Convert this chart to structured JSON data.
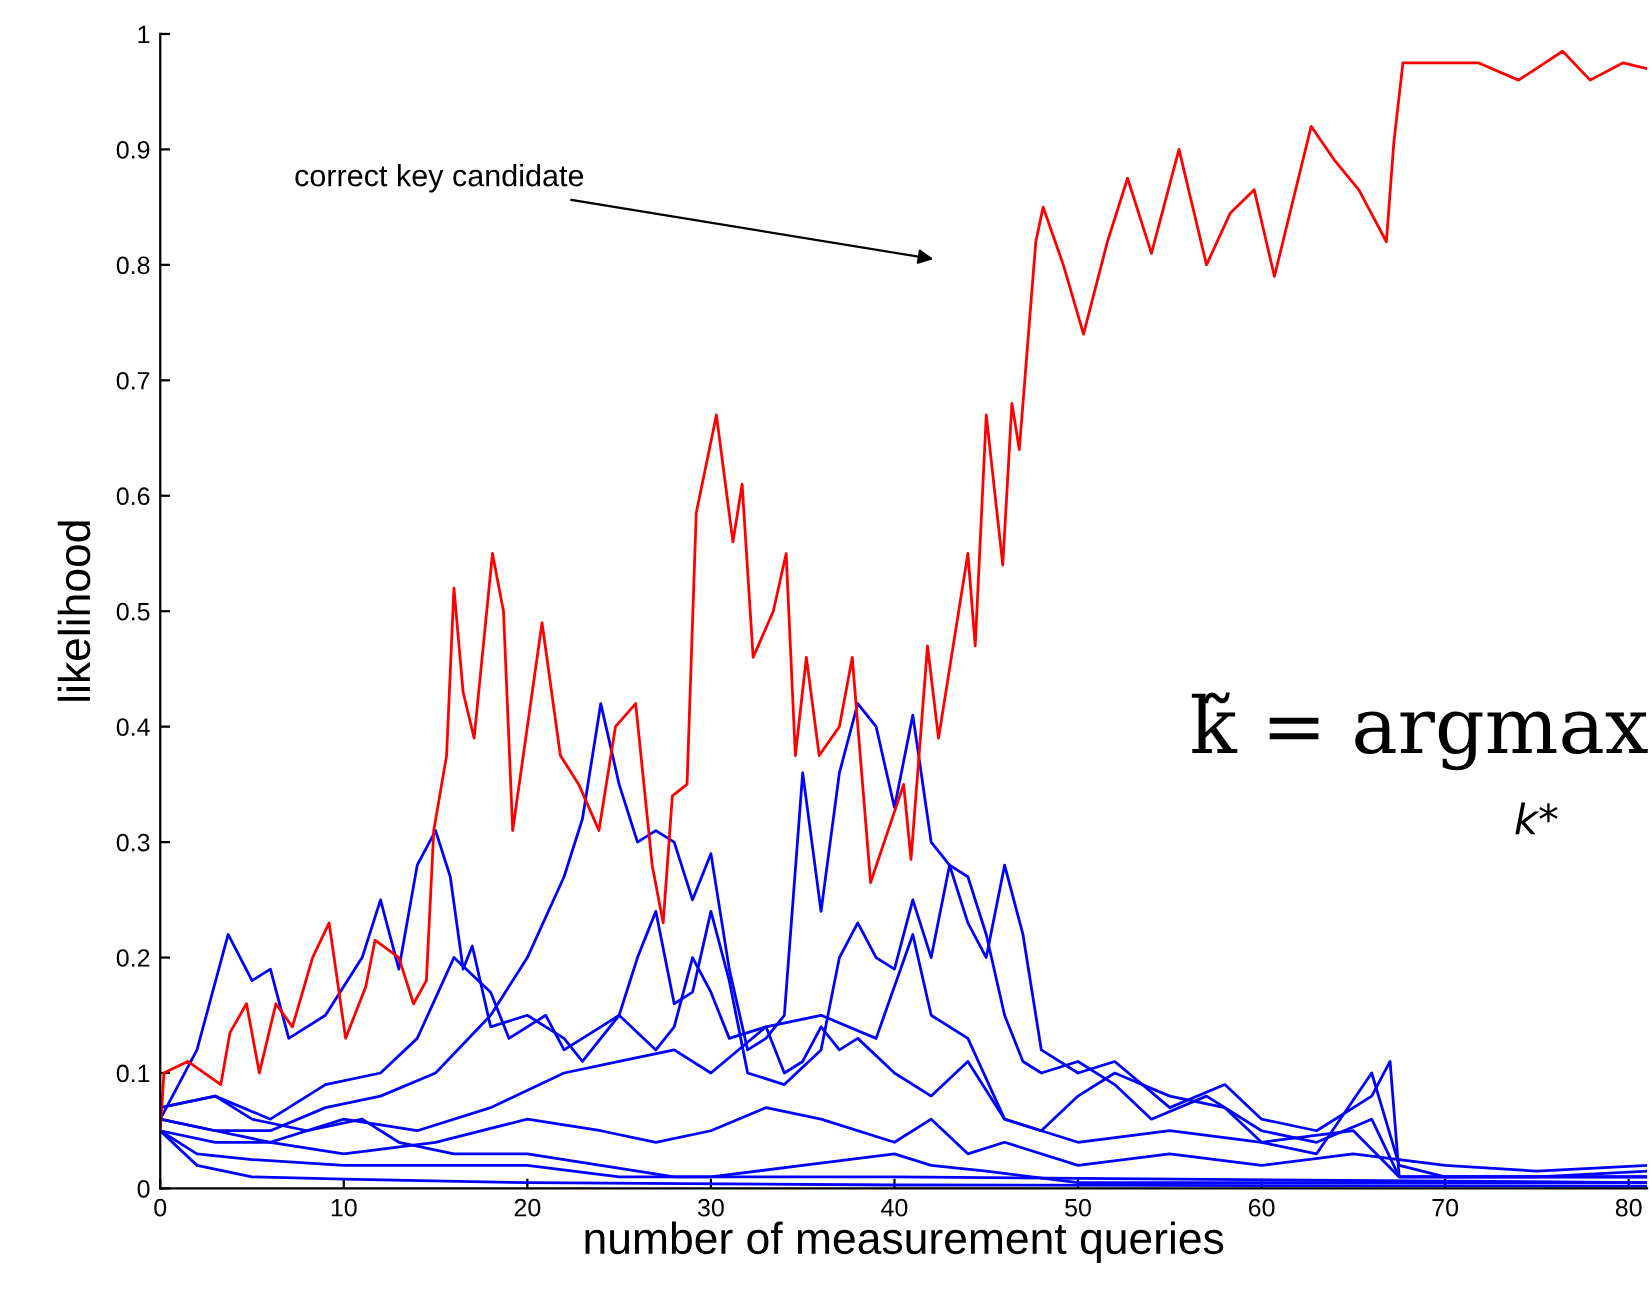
{
  "chart_data": {
    "type": "line",
    "xlabel": "number of measurement queries",
    "ylabel": "likelihood",
    "xlim": [
      0,
      81
    ],
    "ylim": [
      0,
      1
    ],
    "xticks": [
      0,
      10,
      20,
      30,
      40,
      50,
      60,
      70,
      80
    ],
    "yticks": [
      0,
      0.1,
      0.2,
      0.3,
      0.4,
      0.5,
      0.6,
      0.7,
      0.8,
      0.9,
      1
    ],
    "grid": false,
    "legend": false,
    "marker": "none",
    "line_style": "solid",
    "annotations": [
      "correct key candidate",
      "k̃ = argmax",
      "k*"
    ],
    "series": [
      {
        "color": "#0000ff",
        "x": [
          0,
          2,
          3.7,
          5,
          6,
          7,
          9,
          11,
          12,
          13,
          14,
          15,
          15.8,
          16.5,
          17,
          18,
          20,
          22,
          23,
          25,
          27,
          28,
          29,
          30,
          31,
          33,
          34,
          35,
          36,
          37,
          38,
          40,
          42,
          44,
          46,
          48,
          50,
          52,
          55,
          58,
          60,
          63,
          66,
          67.5,
          70,
          75,
          81
        ],
        "values": [
          0.06,
          0.12,
          0.22,
          0.18,
          0.19,
          0.13,
          0.15,
          0.2,
          0.25,
          0.19,
          0.28,
          0.31,
          0.27,
          0.19,
          0.21,
          0.14,
          0.15,
          0.13,
          0.11,
          0.15,
          0.12,
          0.14,
          0.2,
          0.17,
          0.13,
          0.14,
          0.1,
          0.11,
          0.14,
          0.12,
          0.13,
          0.1,
          0.08,
          0.11,
          0.06,
          0.05,
          0.08,
          0.1,
          0.08,
          0.07,
          0.04,
          0.03,
          0.1,
          0.02,
          0.01,
          0.01,
          0.015
        ]
      },
      {
        "color": "#0000ff",
        "x": [
          0,
          3,
          6,
          9,
          12,
          15,
          18,
          20,
          22,
          23,
          24,
          25,
          26,
          27,
          28,
          29,
          30,
          31,
          32,
          33,
          34,
          35,
          36,
          37,
          38,
          39,
          40,
          41,
          42,
          43,
          44,
          45,
          46,
          47,
          48,
          50,
          52,
          54,
          57,
          60,
          63,
          66,
          67.5,
          81
        ],
        "values": [
          0.06,
          0.05,
          0.05,
          0.07,
          0.08,
          0.1,
          0.15,
          0.2,
          0.27,
          0.32,
          0.42,
          0.35,
          0.3,
          0.31,
          0.3,
          0.25,
          0.29,
          0.19,
          0.12,
          0.13,
          0.15,
          0.36,
          0.24,
          0.36,
          0.42,
          0.4,
          0.33,
          0.41,
          0.3,
          0.28,
          0.27,
          0.22,
          0.15,
          0.11,
          0.1,
          0.11,
          0.09,
          0.06,
          0.08,
          0.05,
          0.04,
          0.06,
          0.01,
          0.01
        ]
      },
      {
        "color": "#0000ff",
        "x": [
          0,
          3,
          6,
          9,
          12,
          14,
          16,
          18,
          19,
          21,
          22,
          24,
          25,
          26,
          27,
          28,
          29,
          30,
          31,
          32,
          34,
          36,
          37,
          38,
          39,
          40,
          41,
          42,
          43,
          44,
          45,
          46,
          47,
          48,
          50,
          52,
          55,
          58,
          60,
          63,
          66,
          67,
          67.5,
          81
        ],
        "values": [
          0.07,
          0.08,
          0.06,
          0.09,
          0.1,
          0.13,
          0.2,
          0.17,
          0.13,
          0.15,
          0.12,
          0.14,
          0.15,
          0.2,
          0.24,
          0.16,
          0.17,
          0.24,
          0.18,
          0.1,
          0.09,
          0.12,
          0.2,
          0.23,
          0.2,
          0.19,
          0.25,
          0.2,
          0.28,
          0.23,
          0.2,
          0.28,
          0.22,
          0.12,
          0.1,
          0.11,
          0.07,
          0.09,
          0.06,
          0.05,
          0.08,
          0.11,
          0.01,
          0.01
        ]
      },
      {
        "color": "#0000ff",
        "x": [
          0,
          3,
          6,
          10,
          14,
          18,
          22,
          25,
          28,
          30,
          33,
          36,
          39,
          41,
          42,
          44,
          46,
          48,
          50,
          55,
          60,
          65,
          67.5,
          81
        ],
        "values": [
          0.06,
          0.05,
          0.04,
          0.06,
          0.05,
          0.07,
          0.1,
          0.11,
          0.12,
          0.1,
          0.14,
          0.15,
          0.13,
          0.22,
          0.15,
          0.13,
          0.06,
          0.05,
          0.04,
          0.05,
          0.04,
          0.05,
          0.01,
          0.01
        ]
      },
      {
        "color": "#0000ff",
        "x": [
          0,
          3,
          6,
          10,
          15,
          20,
          24,
          27,
          30,
          33,
          36,
          40,
          42,
          44,
          46,
          50,
          55,
          60,
          65,
          70,
          75,
          81
        ],
        "values": [
          0.05,
          0.04,
          0.04,
          0.03,
          0.04,
          0.06,
          0.05,
          0.04,
          0.05,
          0.07,
          0.06,
          0.04,
          0.06,
          0.03,
          0.04,
          0.02,
          0.03,
          0.02,
          0.03,
          0.02,
          0.015,
          0.02
        ]
      },
      {
        "color": "#0000ff",
        "x": [
          0,
          2,
          5,
          10,
          15,
          20,
          25,
          30,
          35,
          40,
          42,
          45,
          50,
          60,
          70,
          81
        ],
        "values": [
          0.05,
          0.03,
          0.025,
          0.02,
          0.02,
          0.02,
          0.01,
          0.01,
          0.02,
          0.03,
          0.02,
          0.015,
          0.005,
          0.005,
          0.005,
          0.005
        ]
      },
      {
        "color": "#0000ff",
        "x": [
          0,
          2,
          5,
          10,
          20,
          40,
          81
        ],
        "values": [
          0.05,
          0.02,
          0.01,
          0.008,
          0.005,
          0.003,
          0.002
        ]
      },
      {
        "color": "#0000ff",
        "x": [
          0,
          3,
          5,
          8,
          11,
          13,
          16,
          20,
          24,
          28,
          32,
          40,
          81
        ],
        "values": [
          0.07,
          0.08,
          0.06,
          0.05,
          0.06,
          0.04,
          0.03,
          0.03,
          0.02,
          0.01,
          0.01,
          0.01,
          0.005
        ]
      },
      {
        "color": "#ff0000",
        "x": [
          0,
          0.2,
          1.5,
          3.3,
          3.8,
          4.7,
          5.4,
          6.3,
          7.2,
          8.3,
          9.2,
          10.1,
          11.2,
          11.7,
          13.0,
          13.8,
          14.5,
          14.9,
          15.6,
          16.0,
          16.5,
          17.1,
          18.1,
          18.7,
          19.2,
          20.0,
          20.8,
          21.8,
          22.8,
          23.9,
          24.8,
          25.9,
          26.8,
          27.4,
          27.9,
          28.7,
          29.2,
          30.3,
          31.2,
          31.7,
          32.3,
          33.4,
          34.1,
          34.6,
          35.2,
          35.9,
          37.0,
          37.7,
          38.7,
          40.5,
          40.9,
          41.8,
          42.4,
          44.0,
          44.4,
          45.0,
          45.9,
          46.4,
          46.8,
          47.7,
          48.1,
          49.2,
          50.3,
          51.6,
          52.7,
          54.0,
          55.5,
          57.0,
          58.3,
          59.6,
          60.7,
          62.7,
          64.0,
          65.3,
          66.8,
          67.2,
          67.7,
          69.6,
          71.8,
          74.0,
          76.4,
          77.9,
          79.7,
          81
        ],
        "values": [
          0.05,
          0.1,
          0.11,
          0.09,
          0.135,
          0.16,
          0.1,
          0.16,
          0.14,
          0.2,
          0.23,
          0.13,
          0.175,
          0.215,
          0.2,
          0.16,
          0.18,
          0.31,
          0.375,
          0.52,
          0.43,
          0.39,
          0.55,
          0.5,
          0.31,
          0.4,
          0.49,
          0.375,
          0.35,
          0.31,
          0.4,
          0.42,
          0.28,
          0.23,
          0.34,
          0.35,
          0.585,
          0.67,
          0.56,
          0.61,
          0.46,
          0.5,
          0.55,
          0.375,
          0.46,
          0.375,
          0.4,
          0.46,
          0.265,
          0.35,
          0.285,
          0.47,
          0.39,
          0.55,
          0.47,
          0.67,
          0.54,
          0.68,
          0.64,
          0.82,
          0.85,
          0.8,
          0.74,
          0.82,
          0.875,
          0.81,
          0.9,
          0.8,
          0.845,
          0.865,
          0.79,
          0.92,
          0.89,
          0.865,
          0.82,
          0.905,
          0.975,
          0.975,
          0.975,
          0.96,
          0.985,
          0.96,
          0.975,
          0.97
        ]
      }
    ]
  }
}
